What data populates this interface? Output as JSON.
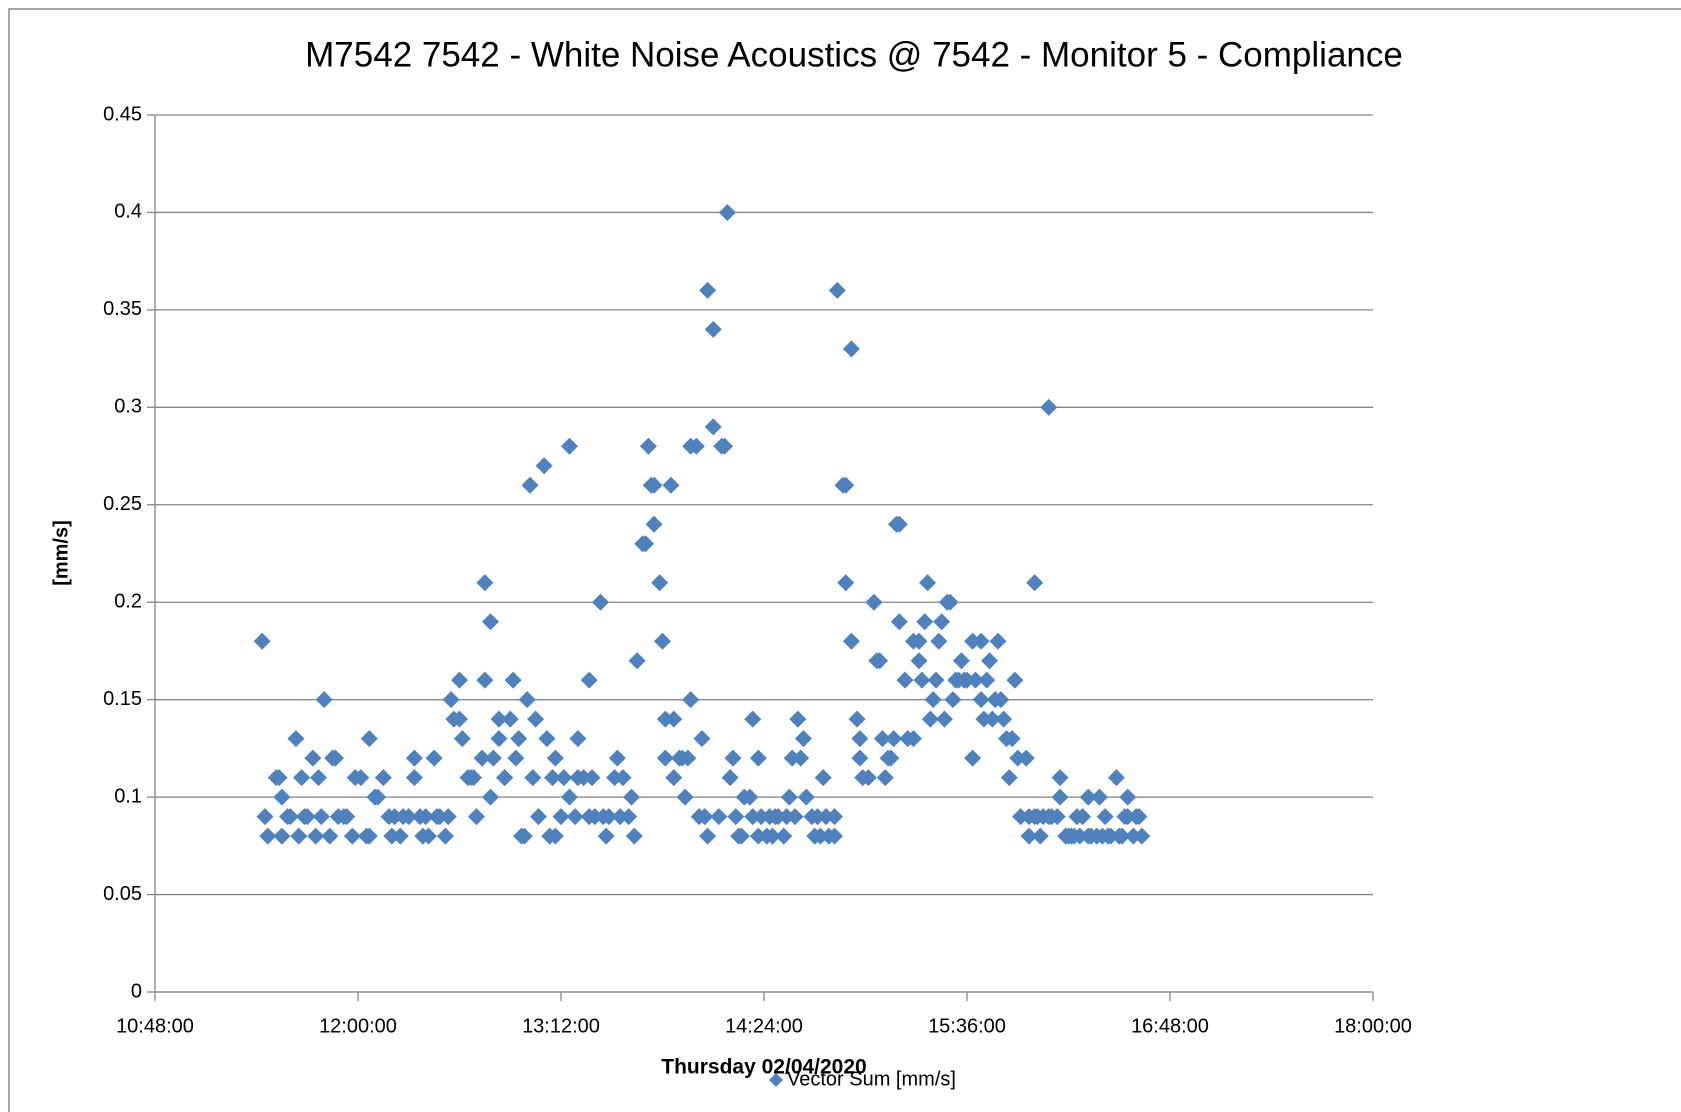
{
  "chart_data": {
    "type": "scatter",
    "title": "M7542 7542 - White Noise Acoustics @ 7542 - Monitor 5  - Compliance",
    "x_label": "Thursday 02/04/2020",
    "y_label": "[mm/s]",
    "xlim": [
      648,
      1080
    ],
    "xticks": [
      {
        "value": 648,
        "label": "10:48:00"
      },
      {
        "value": 720,
        "label": "12:00:00"
      },
      {
        "value": 792,
        "label": "13:12:00"
      },
      {
        "value": 864,
        "label": "14:24:00"
      },
      {
        "value": 936,
        "label": "15:36:00"
      },
      {
        "value": 1008,
        "label": "16:48:00"
      },
      {
        "value": 1080,
        "label": "18:00:00"
      }
    ],
    "ylim": [
      0,
      0.45
    ],
    "yticks": [
      0,
      0.05,
      0.1,
      0.15,
      0.2,
      0.25,
      0.3,
      0.35,
      0.4,
      0.45
    ],
    "grid": true,
    "legend": "bottom",
    "series": [
      {
        "name": "Vector Sum [mm/s]",
        "color": "#4f81bd",
        "x": [
          686,
          687,
          688,
          691,
          692,
          693,
          693,
          695,
          696,
          698,
          699,
          700,
          701,
          702,
          704,
          705,
          706,
          707,
          708,
          710,
          711,
          712,
          713,
          715,
          716,
          718,
          719,
          721,
          723,
          724,
          724,
          726,
          727,
          729,
          731,
          732,
          733,
          735,
          736,
          738,
          740,
          740,
          742,
          743,
          744,
          745,
          747,
          748,
          749,
          751,
          752,
          753,
          754,
          756,
          756,
          757,
          759,
          760,
          761,
          762,
          764,
          765,
          765,
          767,
          767,
          768,
          770,
          770,
          772,
          772,
          774,
          775,
          776,
          777,
          778,
          779,
          780,
          781,
          782,
          783,
          784,
          786,
          787,
          788,
          789,
          790,
          790,
          792,
          793,
          795,
          795,
          797,
          798,
          798,
          800,
          802,
          802,
          803,
          804,
          806,
          807,
          808,
          809,
          811,
          812,
          813,
          814,
          816,
          817,
          818,
          819,
          821,
          822,
          823,
          824,
          825,
          825,
          827,
          828,
          829,
          829,
          831,
          832,
          832,
          834,
          835,
          836,
          837,
          838,
          838,
          840,
          841,
          842,
          843,
          844,
          844,
          846,
          846,
          848,
          849,
          850,
          851,
          852,
          853,
          854,
          855,
          856,
          857,
          859,
          860,
          860,
          862,
          862,
          863,
          865,
          866,
          867,
          868,
          869,
          871,
          872,
          873,
          874,
          875,
          876,
          877,
          878,
          879,
          881,
          882,
          883,
          884,
          885,
          886,
          887,
          889,
          889,
          890,
          892,
          893,
          893,
          895,
          895,
          897,
          898,
          898,
          899,
          901,
          903,
          904,
          905,
          906,
          907,
          908,
          909,
          910,
          911,
          912,
          912,
          914,
          915,
          917,
          917,
          919,
          919,
          920,
          921,
          922,
          923,
          924,
          925,
          926,
          927,
          928,
          929,
          930,
          931,
          932,
          933,
          934,
          935,
          936,
          938,
          938,
          939,
          941,
          941,
          942,
          943,
          944,
          945,
          946,
          947,
          948,
          949,
          950,
          951,
          952,
          953,
          954,
          955,
          957,
          958,
          958,
          960,
          960,
          961,
          962,
          963,
          965,
          965,
          966,
          968,
          969,
          969,
          971,
          972,
          973,
          974,
          975,
          976,
          977,
          979,
          979,
          980,
          982,
          983,
          984,
          985,
          986,
          987,
          989,
          990,
          991,
          992,
          993,
          993,
          995,
          996,
          997,
          998
        ],
        "values": [
          0.18,
          0.09,
          0.08,
          0.11,
          0.11,
          0.08,
          0.1,
          0.09,
          0.09,
          0.13,
          0.08,
          0.11,
          0.09,
          0.09,
          0.12,
          0.08,
          0.11,
          0.09,
          0.15,
          0.08,
          0.12,
          0.12,
          0.09,
          0.09,
          0.09,
          0.08,
          0.11,
          0.11,
          0.08,
          0.13,
          0.08,
          0.1,
          0.1,
          0.11,
          0.09,
          0.08,
          0.09,
          0.08,
          0.09,
          0.09,
          0.12,
          0.11,
          0.09,
          0.08,
          0.09,
          0.08,
          0.12,
          0.09,
          0.09,
          0.08,
          0.09,
          0.15,
          0.14,
          0.14,
          0.16,
          0.13,
          0.11,
          0.11,
          0.11,
          0.09,
          0.12,
          0.16,
          0.21,
          0.19,
          0.1,
          0.12,
          0.13,
          0.14,
          0.11,
          0.11,
          0.14,
          0.16,
          0.12,
          0.13,
          0.08,
          0.08,
          0.15,
          0.26,
          0.11,
          0.14,
          0.09,
          0.27,
          0.13,
          0.08,
          0.11,
          0.08,
          0.12,
          0.09,
          0.11,
          0.28,
          0.1,
          0.09,
          0.13,
          0.11,
          0.11,
          0.16,
          0.09,
          0.11,
          0.09,
          0.2,
          0.09,
          0.08,
          0.09,
          0.11,
          0.12,
          0.09,
          0.11,
          0.09,
          0.1,
          0.08,
          0.17,
          0.23,
          0.23,
          0.28,
          0.26,
          0.26,
          0.24,
          0.21,
          0.18,
          0.14,
          0.12,
          0.26,
          0.14,
          0.11,
          0.12,
          0.12,
          0.1,
          0.12,
          0.15,
          0.28,
          0.28,
          0.09,
          0.13,
          0.09,
          0.08,
          0.36,
          0.34,
          0.29,
          0.09,
          0.28,
          0.28,
          0.4,
          0.11,
          0.12,
          0.09,
          0.08,
          0.08,
          0.1,
          0.1,
          0.14,
          0.09,
          0.12,
          0.08,
          0.09,
          0.08,
          0.09,
          0.08,
          0.09,
          0.09,
          0.08,
          0.09,
          0.1,
          0.12,
          0.09,
          0.14,
          0.12,
          0.13,
          0.1,
          0.09,
          0.08,
          0.09,
          0.08,
          0.11,
          0.09,
          0.08,
          0.09,
          0.08,
          0.36,
          0.26,
          0.26,
          0.21,
          0.33,
          0.18,
          0.14,
          0.12,
          0.13,
          0.11,
          0.11,
          0.2,
          0.17,
          0.17,
          0.13,
          0.11,
          0.12,
          0.12,
          0.13,
          0.24,
          0.24,
          0.19,
          0.16,
          0.13,
          0.13,
          0.18,
          0.18,
          0.17,
          0.16,
          0.19,
          0.21,
          0.14,
          0.15,
          0.16,
          0.18,
          0.19,
          0.14,
          0.2,
          0.2,
          0.15,
          0.16,
          0.16,
          0.17,
          0.16,
          0.16,
          0.12,
          0.18,
          0.16,
          0.18,
          0.15,
          0.14,
          0.16,
          0.17,
          0.14,
          0.15,
          0.18,
          0.15,
          0.14,
          0.13,
          0.11,
          0.13,
          0.16,
          0.12,
          0.09,
          0.12,
          0.09,
          0.08,
          0.21,
          0.09,
          0.09,
          0.08,
          0.09,
          0.3,
          0.09,
          0.09,
          0.09,
          0.11,
          0.1,
          0.08,
          0.08,
          0.08,
          0.08,
          0.09,
          0.08,
          0.09,
          0.08,
          0.1,
          0.08,
          0.08,
          0.1,
          0.08,
          0.09,
          0.08,
          0.08,
          0.11,
          0.08,
          0.08,
          0.09,
          0.09,
          0.1,
          0.08,
          0.09,
          0.09,
          0.08
        ]
      }
    ]
  }
}
